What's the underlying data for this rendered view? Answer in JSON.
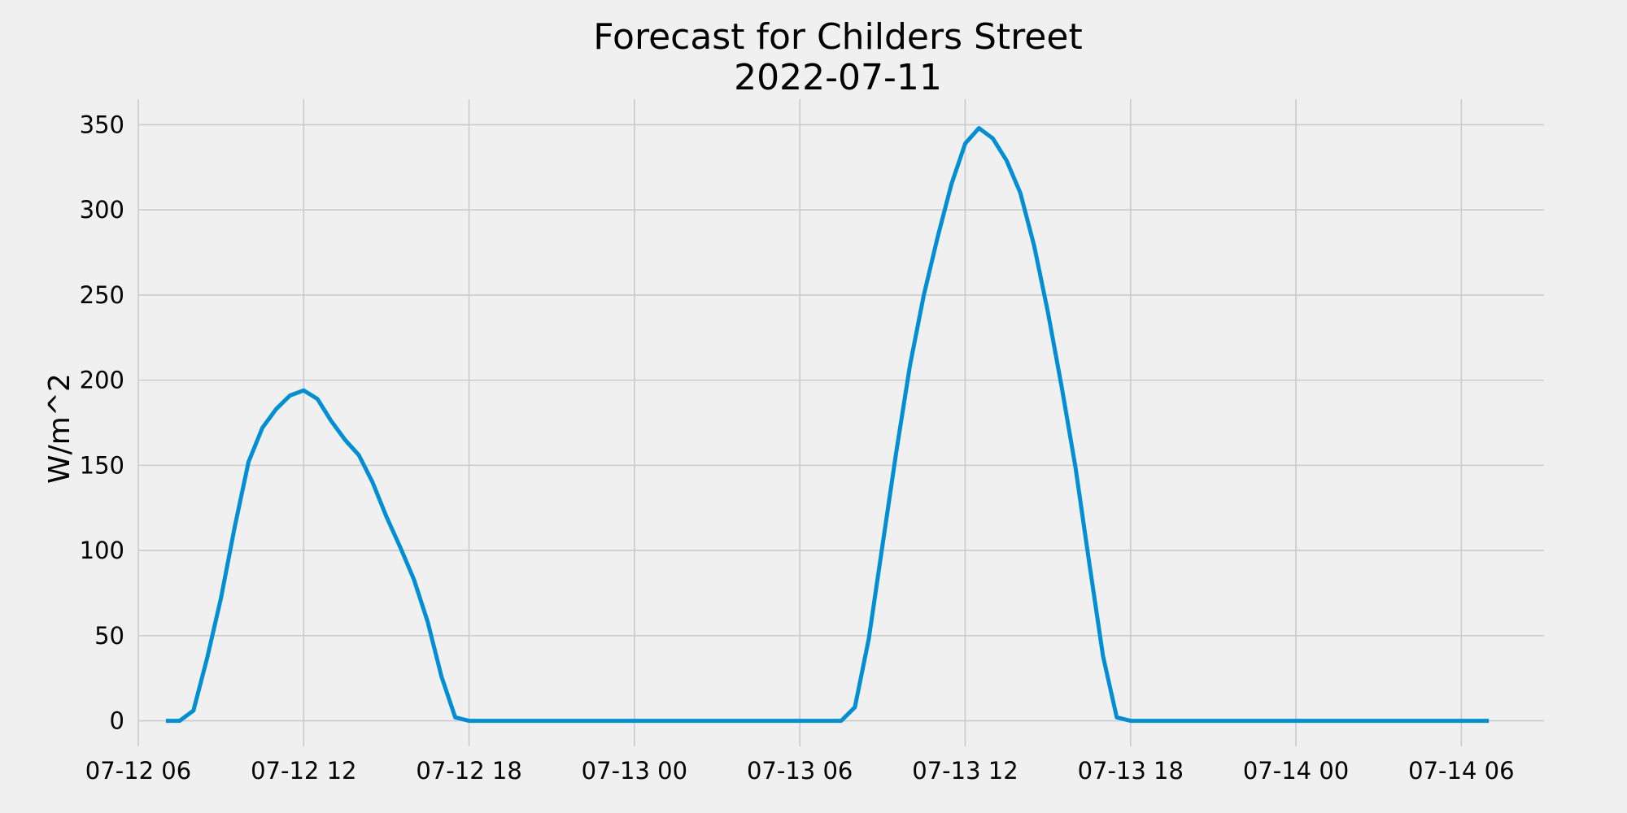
{
  "chart_data": {
    "type": "line",
    "title": "Forecast for Childers Street",
    "subtitle": "2022-07-11",
    "xlabel": "",
    "ylabel": "W/m^2",
    "ylim": [
      -15,
      365
    ],
    "xlim": [
      "2022-07-12 06:00",
      "2022-07-14 09:00"
    ],
    "grid": true,
    "x_ticks": [
      {
        "value": "2022-07-12 06:00",
        "label": "07-12 06"
      },
      {
        "value": "2022-07-12 12:00",
        "label": "07-12 12"
      },
      {
        "value": "2022-07-12 18:00",
        "label": "07-12 18"
      },
      {
        "value": "2022-07-13 00:00",
        "label": "07-13 00"
      },
      {
        "value": "2022-07-13 06:00",
        "label": "07-13 06"
      },
      {
        "value": "2022-07-13 12:00",
        "label": "07-13 12"
      },
      {
        "value": "2022-07-13 18:00",
        "label": "07-13 18"
      },
      {
        "value": "2022-07-14 00:00",
        "label": "07-14 00"
      },
      {
        "value": "2022-07-14 06:00",
        "label": "07-14 06"
      }
    ],
    "y_ticks": [
      0,
      50,
      100,
      150,
      200,
      250,
      300,
      350
    ],
    "color": "#008fd5",
    "series": [
      {
        "x": [
          "2022-07-12 07:00",
          "2022-07-12 07:30",
          "2022-07-12 08:00",
          "2022-07-12 08:30",
          "2022-07-12 09:00",
          "2022-07-12 09:30",
          "2022-07-12 10:00",
          "2022-07-12 10:30",
          "2022-07-12 11:00",
          "2022-07-12 11:30",
          "2022-07-12 12:00",
          "2022-07-12 12:30",
          "2022-07-12 13:00",
          "2022-07-12 13:30",
          "2022-07-12 14:00",
          "2022-07-12 14:30",
          "2022-07-12 15:00",
          "2022-07-12 15:30",
          "2022-07-12 16:00",
          "2022-07-12 16:30",
          "2022-07-12 17:00",
          "2022-07-12 17:30",
          "2022-07-12 18:00",
          "2022-07-13 07:30",
          "2022-07-13 08:00",
          "2022-07-13 08:30",
          "2022-07-13 09:00",
          "2022-07-13 09:30",
          "2022-07-13 10:00",
          "2022-07-13 10:30",
          "2022-07-13 11:00",
          "2022-07-13 11:30",
          "2022-07-13 12:00",
          "2022-07-13 12:30",
          "2022-07-13 13:00",
          "2022-07-13 13:30",
          "2022-07-13 14:00",
          "2022-07-13 14:30",
          "2022-07-13 15:00",
          "2022-07-13 15:30",
          "2022-07-13 16:00",
          "2022-07-13 16:30",
          "2022-07-13 17:00",
          "2022-07-13 17:30",
          "2022-07-13 18:00",
          "2022-07-14 07:00"
        ],
        "y": [
          0,
          0,
          6,
          37,
          72,
          114,
          152,
          172,
          183,
          191,
          194,
          189,
          176,
          165,
          156,
          140,
          120,
          102,
          83,
          58,
          26,
          2,
          0,
          0,
          8,
          48,
          103,
          158,
          209,
          250,
          284,
          315,
          339,
          348,
          342,
          329,
          310,
          279,
          240,
          196,
          149,
          93,
          38,
          2,
          0,
          0
        ]
      }
    ]
  }
}
